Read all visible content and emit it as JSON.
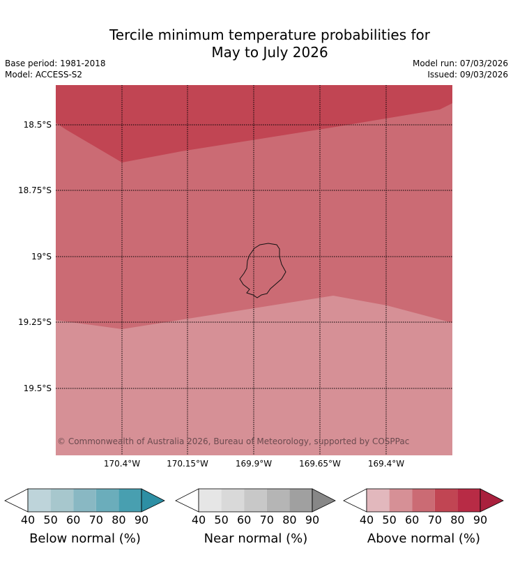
{
  "title": {
    "line1": "Tercile minimum temperature probabilities for",
    "line2": "May to July 2026"
  },
  "meta": {
    "base_period": "Base period: 1981-2018",
    "model": "Model: ACCESS-S2",
    "model_run": "Model run: 07/03/2026",
    "issued": "Issued: 09/03/2026"
  },
  "map": {
    "latitude_labels": [
      "18.5°S",
      "18.75°S",
      "19°S",
      "19.25°S",
      "19.5°S"
    ],
    "longitude_labels": [
      "170.4°W",
      "170.15°W",
      "169.9°W",
      "169.65°W",
      "169.4°W"
    ],
    "copyright": "© Commonwealth of Australia 2026, Bureau of Meteorology, supported by COSPPac",
    "regions": [
      {
        "category": "Above normal",
        "probability_band": "70-80",
        "color": "#c14553"
      },
      {
        "category": "Above normal",
        "probability_band": "60-70",
        "color": "#cb6b74"
      },
      {
        "category": "Above normal",
        "probability_band": "50-60",
        "color": "#d69096"
      }
    ]
  },
  "legends": [
    {
      "name": "below",
      "title": "Below normal (%)",
      "ticks": [
        "40",
        "50",
        "60",
        "70",
        "80",
        "90"
      ],
      "colors": [
        "#ffffff",
        "#bed4da",
        "#a7c7cd",
        "#89b8c3",
        "#6badbb",
        "#489fb0",
        "#2d8fa4"
      ]
    },
    {
      "name": "near",
      "title": "Near normal (%)",
      "ticks": [
        "40",
        "50",
        "60",
        "70",
        "80",
        "90"
      ],
      "colors": [
        "#ffffff",
        "#e6e6e6",
        "#d9d9d9",
        "#c8c8c8",
        "#b5b5b5",
        "#a0a0a0",
        "#878787"
      ]
    },
    {
      "name": "above",
      "title": "Above normal (%)",
      "ticks": [
        "40",
        "50",
        "60",
        "70",
        "80",
        "90"
      ],
      "colors": [
        "#ffffff",
        "#e2b8bd",
        "#d69096",
        "#cb6b74",
        "#c14553",
        "#b82b45",
        "#a9203d"
      ]
    }
  ]
}
